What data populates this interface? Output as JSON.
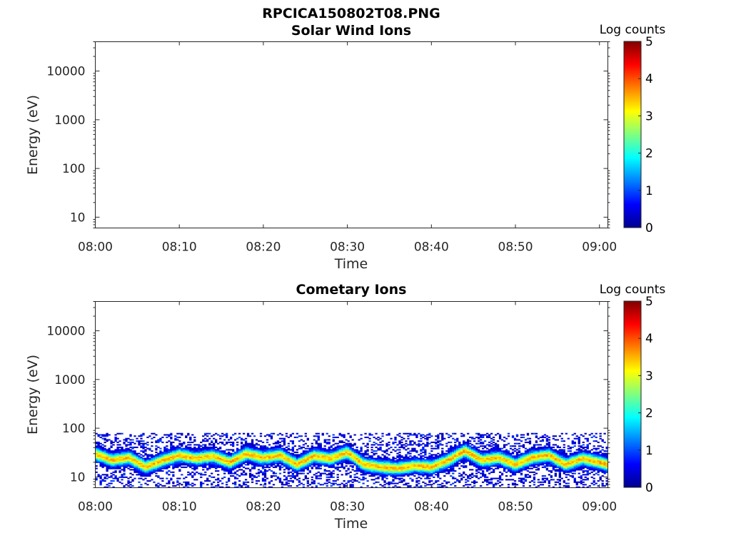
{
  "figure": {
    "title": "RPCICA150802T08.PNG"
  },
  "colormap": {
    "name": "jet",
    "stops": [
      "#00008f",
      "#0000ff",
      "#0080ff",
      "#00ffff",
      "#80ff80",
      "#ffff00",
      "#ff8000",
      "#ff0000",
      "#800000"
    ]
  },
  "chart_data": [
    {
      "type": "heatmap",
      "title": "Solar Wind Ions",
      "xlabel": "Time",
      "ylabel": "Energy (eV)",
      "x_ticks": [
        "08:00",
        "08:10",
        "08:20",
        "08:30",
        "08:40",
        "08:50",
        "09:00"
      ],
      "x_range_minutes": [
        0,
        61
      ],
      "y_scale": "log",
      "y_range_eV": [
        6,
        40000
      ],
      "y_ticks": [
        10,
        100,
        1000,
        10000
      ],
      "y_tick_labels": [
        "10",
        "100",
        "1000",
        "10000"
      ],
      "colorbar": {
        "label": "Log counts",
        "range": [
          0,
          5
        ],
        "ticks": [
          "0",
          "1",
          "2",
          "3",
          "4",
          "5"
        ]
      },
      "data_present": false,
      "band": null
    },
    {
      "type": "heatmap",
      "title": "Cometary Ions",
      "xlabel": "Time",
      "ylabel": "Energy (eV)",
      "x_ticks": [
        "08:00",
        "08:10",
        "08:20",
        "08:30",
        "08:40",
        "08:50",
        "09:00"
      ],
      "x_range_minutes": [
        0,
        61
      ],
      "y_scale": "log",
      "y_range_eV": [
        6,
        40000
      ],
      "y_ticks": [
        10,
        100,
        1000,
        10000
      ],
      "y_tick_labels": [
        "10",
        "100",
        "1000",
        "10000"
      ],
      "colorbar": {
        "label": "Log counts",
        "range": [
          0,
          5
        ],
        "ticks": [
          "0",
          "1",
          "2",
          "3",
          "4",
          "5"
        ]
      },
      "data_present": true,
      "band": {
        "energy_min_eV": 6,
        "energy_max_eV": 80,
        "peak_log_counts": 3.5,
        "peak_energy_eV": [
          {
            "t": 0,
            "eV": 30
          },
          {
            "t": 2,
            "eV": 22
          },
          {
            "t": 4,
            "eV": 25
          },
          {
            "t": 6,
            "eV": 16
          },
          {
            "t": 8,
            "eV": 22
          },
          {
            "t": 10,
            "eV": 28
          },
          {
            "t": 12,
            "eV": 24
          },
          {
            "t": 14,
            "eV": 27
          },
          {
            "t": 16,
            "eV": 20
          },
          {
            "t": 18,
            "eV": 30
          },
          {
            "t": 20,
            "eV": 25
          },
          {
            "t": 22,
            "eV": 28
          },
          {
            "t": 24,
            "eV": 18
          },
          {
            "t": 26,
            "eV": 27
          },
          {
            "t": 28,
            "eV": 24
          },
          {
            "t": 30,
            "eV": 32
          },
          {
            "t": 32,
            "eV": 18
          },
          {
            "t": 34,
            "eV": 16
          },
          {
            "t": 36,
            "eV": 15
          },
          {
            "t": 38,
            "eV": 17
          },
          {
            "t": 40,
            "eV": 16
          },
          {
            "t": 42,
            "eV": 22
          },
          {
            "t": 44,
            "eV": 35
          },
          {
            "t": 46,
            "eV": 22
          },
          {
            "t": 48,
            "eV": 25
          },
          {
            "t": 50,
            "eV": 18
          },
          {
            "t": 52,
            "eV": 25
          },
          {
            "t": 54,
            "eV": 28
          },
          {
            "t": 56,
            "eV": 18
          },
          {
            "t": 58,
            "eV": 24
          },
          {
            "t": 60,
            "eV": 20
          },
          {
            "t": 61,
            "eV": 18
          }
        ]
      }
    }
  ]
}
